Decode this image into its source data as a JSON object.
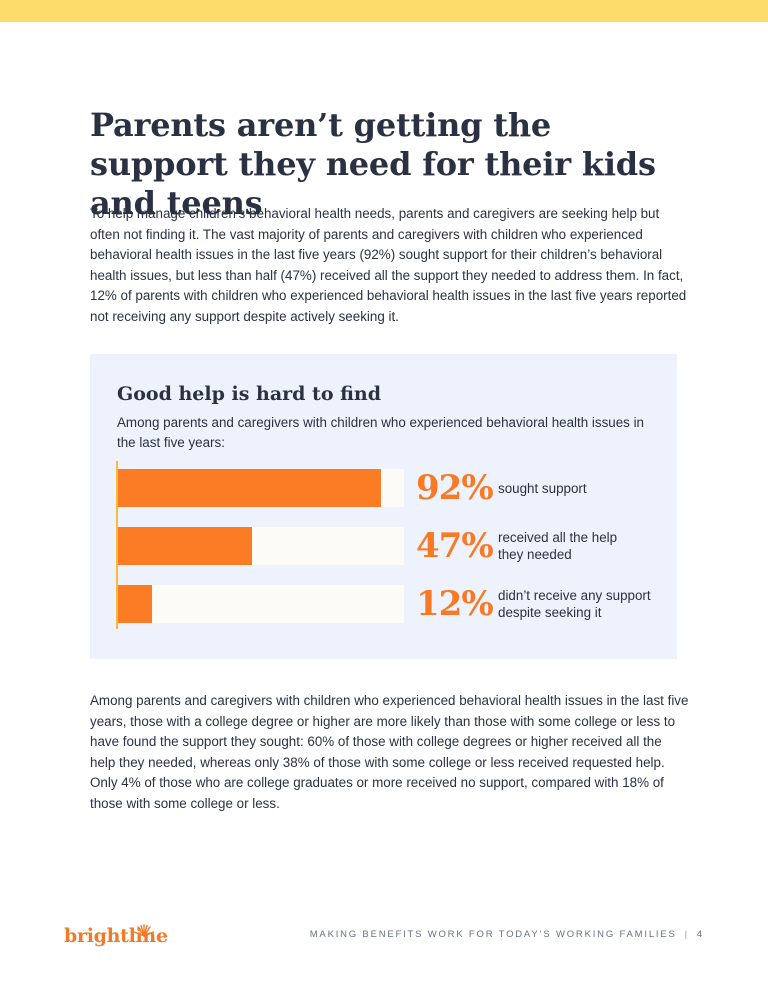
{
  "title": "Parents aren’t getting the support they need for their kids and teens",
  "intro": "To help manage children’s behavioral health needs, parents and caregivers are seeking help but often not finding it. The vast majority of parents and caregivers with children who experienced behavioral health issues in the last five years (92%) sought support for their children’s behavioral health issues, but less than half (47%) received all the support they needed to address them. In fact, 12% of parents with children who experienced behavioral health issues in the last five years reported not receiving any support despite actively seeking it.",
  "panel": {
    "title": "Good help is hard to find",
    "subtitle": "Among parents and caregivers with children who experienced behavioral health issues in the last five years:"
  },
  "chart_data": {
    "type": "bar",
    "orientation": "horizontal",
    "title": "Good help is hard to find",
    "categories": [
      "sought support",
      "received all the help they needed",
      "didn’t receive any support despite seeking it"
    ],
    "values": [
      92,
      47,
      12
    ],
    "value_labels": [
      "92%",
      "47%",
      "12%"
    ],
    "xlim": [
      0,
      100
    ],
    "grid": false,
    "colors": {
      "bar": "#fb7c24",
      "track": "#fdfbf5",
      "axis": "#fbb83a",
      "value_label": "#f87a27"
    }
  },
  "closing": "Among parents and caregivers with children who experienced behavioral health issues in the last five years, those with a college degree or higher are more likely than those with some college or less to have found the support they sought: 60% of those with college degrees or higher received all the help they needed, whereas only 38% of those with  some college or less received requested help. Only 4% of those who are college graduates or more received no support, compared with 18% of those with some college or less.",
  "footer": {
    "logo": "brightline",
    "logo_icon": "sunburst-icon",
    "text": "Making Benefits Work for Today’s Working Families",
    "separator": "|",
    "page_number": "4"
  },
  "colors": {
    "accent_bar": "#fedc6c",
    "panel_bg": "#edf2fc",
    "heading": "#2b3142",
    "brand_orange": "#f07a28"
  }
}
